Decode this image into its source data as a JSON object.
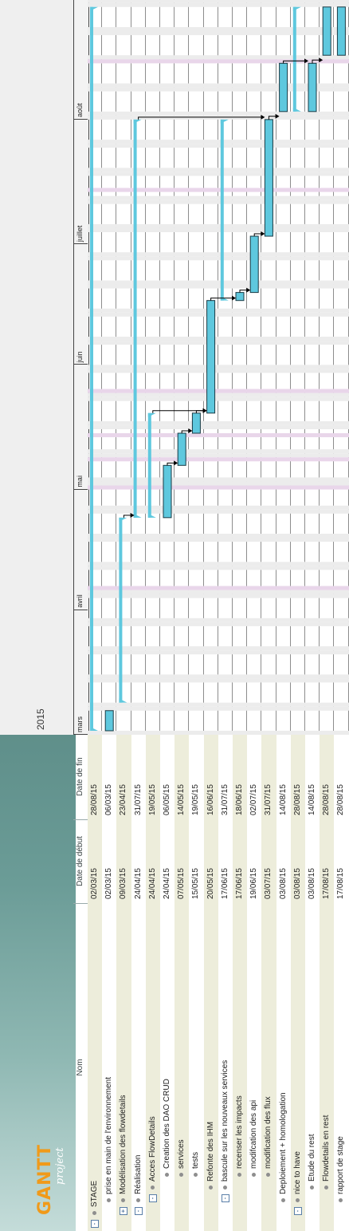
{
  "app": {
    "logo_text": "GANTT",
    "logo_sub": "project"
  },
  "table": {
    "columns": [
      "Nom",
      "Date de début",
      "Date de fin"
    ],
    "rows": [
      {
        "name": "STAGE",
        "start": "02/03/15",
        "end": "28/08/15",
        "level": 0,
        "toggle": "-"
      },
      {
        "name": "prise en main de l'environnement",
        "start": "02/03/15",
        "end": "06/03/15",
        "level": 1,
        "toggle": ""
      },
      {
        "name": "Modélisation des flowdetails",
        "start": "09/03/15",
        "end": "23/04/15",
        "level": 1,
        "toggle": "+"
      },
      {
        "name": "Réalisation",
        "start": "24/04/15",
        "end": "31/07/15",
        "level": 1,
        "toggle": "-"
      },
      {
        "name": "Acces FlowDetails",
        "start": "24/04/15",
        "end": "19/05/15",
        "level": 2,
        "toggle": "-"
      },
      {
        "name": "Creation des DAO CRUD",
        "start": "24/04/15",
        "end": "06/05/15",
        "level": 3,
        "toggle": ""
      },
      {
        "name": "services",
        "start": "07/05/15",
        "end": "14/05/15",
        "level": 3,
        "toggle": ""
      },
      {
        "name": "tests",
        "start": "15/05/15",
        "end": "19/05/15",
        "level": 3,
        "toggle": ""
      },
      {
        "name": "Refonte des IHM",
        "start": "20/05/15",
        "end": "16/06/15",
        "level": 2,
        "toggle": ""
      },
      {
        "name": "bascule sur les nouveaux services",
        "start": "17/06/15",
        "end": "31/07/15",
        "level": 2,
        "toggle": "-"
      },
      {
        "name": "recenser les impacts",
        "start": "17/06/15",
        "end": "18/06/15",
        "level": 3,
        "toggle": ""
      },
      {
        "name": "modifcation des api",
        "start": "19/06/15",
        "end": "02/07/15",
        "level": 3,
        "toggle": ""
      },
      {
        "name": "modification des flux",
        "start": "03/07/15",
        "end": "31/07/15",
        "level": 3,
        "toggle": ""
      },
      {
        "name": "Deploiement + homologation",
        "start": "03/08/15",
        "end": "14/08/15",
        "level": 1,
        "toggle": ""
      },
      {
        "name": "nice to have",
        "start": "03/08/15",
        "end": "28/08/15",
        "level": 1,
        "toggle": "-"
      },
      {
        "name": "Etude du rest",
        "start": "03/08/15",
        "end": "14/08/15",
        "level": 2,
        "toggle": ""
      },
      {
        "name": "Flowdetails en rest",
        "start": "17/08/15",
        "end": "28/08/15",
        "level": 2,
        "toggle": ""
      },
      {
        "name": "rapport de stage",
        "start": "17/08/15",
        "end": "28/08/15",
        "level": 1,
        "toggle": ""
      }
    ]
  },
  "chart_data": {
    "type": "gantt",
    "year": "2015",
    "months": [
      "mars",
      "avril",
      "mai",
      "juin",
      "juillet",
      "août"
    ],
    "x_range": [
      "2015-03-01",
      "2015-08-31"
    ],
    "tasks": [
      {
        "name": "STAGE",
        "start": "2015-03-02",
        "end": "2015-08-28",
        "kind": "summary"
      },
      {
        "name": "prise en main de l'environnement",
        "start": "2015-03-02",
        "end": "2015-03-06",
        "kind": "task"
      },
      {
        "name": "Modélisation des flowdetails",
        "start": "2015-03-09",
        "end": "2015-04-23",
        "kind": "summary"
      },
      {
        "name": "Réalisation",
        "start": "2015-04-24",
        "end": "2015-07-31",
        "kind": "summary"
      },
      {
        "name": "Acces FlowDetails",
        "start": "2015-04-24",
        "end": "2015-05-19",
        "kind": "summary"
      },
      {
        "name": "Creation des DAO CRUD",
        "start": "2015-04-24",
        "end": "2015-05-06",
        "kind": "task"
      },
      {
        "name": "services",
        "start": "2015-05-07",
        "end": "2015-05-14",
        "kind": "task"
      },
      {
        "name": "tests",
        "start": "2015-05-15",
        "end": "2015-05-19",
        "kind": "task"
      },
      {
        "name": "Refonte des IHM",
        "start": "2015-05-20",
        "end": "2015-06-16",
        "kind": "task"
      },
      {
        "name": "bascule sur les nouveaux services",
        "start": "2015-06-17",
        "end": "2015-07-31",
        "kind": "summary"
      },
      {
        "name": "recenser les impacts",
        "start": "2015-06-17",
        "end": "2015-06-18",
        "kind": "task"
      },
      {
        "name": "modifcation des api",
        "start": "2015-06-19",
        "end": "2015-07-02",
        "kind": "task"
      },
      {
        "name": "modification des flux",
        "start": "2015-07-03",
        "end": "2015-07-31",
        "kind": "task"
      },
      {
        "name": "Deploiement + homologation",
        "start": "2015-08-03",
        "end": "2015-08-14",
        "kind": "task"
      },
      {
        "name": "nice to have",
        "start": "2015-08-03",
        "end": "2015-08-28",
        "kind": "summary"
      },
      {
        "name": "Etude du rest",
        "start": "2015-08-03",
        "end": "2015-08-14",
        "kind": "task"
      },
      {
        "name": "Flowdetails en rest",
        "start": "2015-08-17",
        "end": "2015-08-28",
        "kind": "task"
      },
      {
        "name": "rapport de stage",
        "start": "2015-08-17",
        "end": "2015-08-28",
        "kind": "task"
      }
    ],
    "dependencies": [
      [
        5,
        6
      ],
      [
        6,
        7
      ],
      [
        7,
        8
      ],
      [
        4,
        8
      ],
      [
        8,
        10
      ],
      [
        10,
        11
      ],
      [
        11,
        12
      ],
      [
        3,
        12
      ],
      [
        12,
        13
      ],
      [
        13,
        15
      ],
      [
        15,
        16
      ],
      [
        2,
        3
      ]
    ],
    "colors": {
      "bar": "#5ec8de",
      "bar_border": "#1a3a44",
      "summary": "#5ec8de",
      "holiday": "#e9d6ea",
      "grid": "#8d8d8d"
    }
  }
}
